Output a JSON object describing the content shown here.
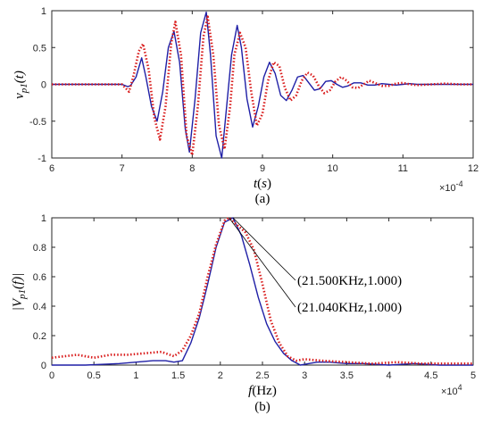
{
  "chart_data": [
    {
      "type": "line",
      "panel_label": "(a)",
      "xlabel_main": "t",
      "xlabel_paren_open": "(",
      "xlabel_unit": "s",
      "xlabel_paren_close": ")",
      "ylabel_base": "v",
      "ylabel_sub": "p1",
      "ylabel_arg": "(t)",
      "x_exponent_base": "×10",
      "x_exponent_power": "-4",
      "xlim": [
        6,
        12
      ],
      "ylim": [
        -1,
        1
      ],
      "xticks": [
        6,
        7,
        8,
        9,
        10,
        11,
        12
      ],
      "xtick_labels": [
        "6",
        "7",
        "8",
        "9",
        "10",
        "11",
        "12"
      ],
      "yticks": [
        -1,
        -0.5,
        0,
        0.5,
        1
      ],
      "ytick_labels": [
        "-1",
        "-0.5",
        "0",
        "0.5",
        "1"
      ],
      "grid": false,
      "series": [
        {
          "color": "#1f1fa6",
          "style": "solid",
          "x": [
            6.0,
            7.0,
            7.08,
            7.12,
            7.2,
            7.28,
            7.34,
            7.42,
            7.5,
            7.58,
            7.66,
            7.74,
            7.82,
            7.9,
            7.96,
            8.04,
            8.12,
            8.2,
            8.26,
            8.34,
            8.42,
            8.48,
            8.56,
            8.64,
            8.7,
            8.78,
            8.86,
            8.94,
            9.02,
            9.1,
            9.18,
            9.26,
            9.34,
            9.42,
            9.5,
            9.58,
            9.66,
            9.74,
            9.82,
            9.9,
            9.98,
            10.06,
            10.14,
            10.22,
            10.3,
            10.4,
            10.5,
            10.6,
            10.7,
            10.8,
            10.9,
            11.0,
            11.1,
            11.2,
            11.4,
            11.6,
            11.8,
            12.0
          ],
          "y": [
            0.0,
            0.0,
            -0.03,
            -0.02,
            0.1,
            0.36,
            0.1,
            -0.3,
            -0.5,
            -0.1,
            0.5,
            0.72,
            0.3,
            -0.6,
            -0.92,
            -0.2,
            0.7,
            0.98,
            0.4,
            -0.7,
            -1.0,
            -0.4,
            0.4,
            0.8,
            0.5,
            -0.2,
            -0.58,
            -0.3,
            0.1,
            0.3,
            0.15,
            -0.15,
            -0.22,
            -0.08,
            0.1,
            0.12,
            0.02,
            -0.08,
            -0.06,
            0.04,
            0.05,
            0.0,
            -0.04,
            -0.02,
            0.02,
            0.02,
            -0.01,
            -0.01,
            0.01,
            0.0,
            -0.01,
            0.0,
            0.01,
            0.0,
            0.0,
            0.0,
            0.0,
            0.0
          ]
        },
        {
          "color": "#d91c1c",
          "style": "dotted",
          "x": [
            6.0,
            7.0,
            7.1,
            7.16,
            7.24,
            7.3,
            7.38,
            7.46,
            7.54,
            7.62,
            7.7,
            7.76,
            7.84,
            7.92,
            8.0,
            8.08,
            8.16,
            8.22,
            8.3,
            8.38,
            8.46,
            8.54,
            8.6,
            8.68,
            8.76,
            8.84,
            8.92,
            9.0,
            9.08,
            9.16,
            9.24,
            9.32,
            9.4,
            9.48,
            9.56,
            9.64,
            9.72,
            9.8,
            9.88,
            9.96,
            10.04,
            10.12,
            10.2,
            10.28,
            10.36,
            10.44,
            10.52,
            10.6,
            10.7,
            10.8,
            10.9,
            11.0,
            11.1,
            11.2,
            11.4,
            11.6,
            11.8,
            12.0
          ],
          "y": [
            0.0,
            0.0,
            -0.1,
            0.1,
            0.45,
            0.55,
            0.2,
            -0.45,
            -0.75,
            -0.3,
            0.55,
            0.85,
            0.4,
            -0.7,
            -0.96,
            -0.3,
            0.65,
            0.92,
            0.4,
            -0.55,
            -0.88,
            -0.3,
            0.4,
            0.7,
            0.5,
            -0.1,
            -0.56,
            -0.4,
            0.05,
            0.3,
            0.25,
            -0.05,
            -0.22,
            -0.15,
            0.05,
            0.16,
            0.12,
            -0.02,
            -0.12,
            -0.08,
            0.04,
            0.1,
            0.05,
            -0.04,
            -0.05,
            0.0,
            0.05,
            0.02,
            -0.02,
            -0.02,
            0.01,
            0.02,
            0.0,
            -0.01,
            0.0,
            0.01,
            0.0,
            0.0
          ]
        }
      ]
    },
    {
      "type": "line",
      "panel_label": "(b)",
      "xlabel_main": "f",
      "xlabel_unit": "(Hz)",
      "ylabel_base": "|V",
      "ylabel_sub": "p1",
      "ylabel_arg": "(f)|",
      "x_exponent_base": "×10",
      "x_exponent_power": "4",
      "xlim": [
        0,
        5
      ],
      "ylim": [
        0,
        1
      ],
      "xticks": [
        0,
        0.5,
        1,
        1.5,
        2,
        2.5,
        3,
        3.5,
        4,
        4.5,
        5
      ],
      "xtick_labels": [
        "0",
        "0.5",
        "1",
        "1.5",
        "2",
        "2.5",
        "3",
        "3.5",
        "4",
        "4.5",
        "5"
      ],
      "yticks": [
        0,
        0.2,
        0.4,
        0.6,
        0.8,
        1
      ],
      "ytick_labels": [
        "0",
        "0.2",
        "0.4",
        "0.6",
        "0.8",
        "1"
      ],
      "grid": false,
      "series": [
        {
          "color": "#1f1fa6",
          "style": "solid",
          "x": [
            0.0,
            0.4,
            0.8,
            1.0,
            1.2,
            1.35,
            1.45,
            1.55,
            1.65,
            1.75,
            1.85,
            1.95,
            2.05,
            2.15,
            2.25,
            2.35,
            2.45,
            2.55,
            2.65,
            2.75,
            2.85,
            2.95,
            3.05,
            3.15,
            3.3,
            3.5,
            3.7,
            4.0,
            4.3,
            4.6,
            5.0
          ],
          "y": [
            0.0,
            0.0,
            0.01,
            0.02,
            0.03,
            0.03,
            0.02,
            0.03,
            0.15,
            0.32,
            0.55,
            0.8,
            0.97,
            1.0,
            0.88,
            0.68,
            0.46,
            0.28,
            0.16,
            0.08,
            0.03,
            0.0,
            0.01,
            0.02,
            0.02,
            0.01,
            0.01,
            0.0,
            0.01,
            0.0,
            0.0
          ]
        },
        {
          "color": "#d91c1c",
          "style": "dotted",
          "x": [
            0.0,
            0.3,
            0.5,
            0.7,
            0.9,
            1.1,
            1.3,
            1.45,
            1.55,
            1.65,
            1.75,
            1.85,
            1.95,
            2.05,
            2.1,
            2.2,
            2.3,
            2.4,
            2.5,
            2.6,
            2.7,
            2.8,
            2.9,
            3.0,
            3.2,
            3.5,
            3.8,
            4.1,
            4.4,
            4.7,
            5.0
          ],
          "y": [
            0.05,
            0.07,
            0.05,
            0.07,
            0.07,
            0.08,
            0.09,
            0.06,
            0.1,
            0.2,
            0.35,
            0.6,
            0.82,
            0.98,
            1.0,
            0.95,
            0.9,
            0.78,
            0.55,
            0.3,
            0.15,
            0.06,
            0.03,
            0.04,
            0.03,
            0.02,
            0.01,
            0.02,
            0.01,
            0.01,
            0.01
          ]
        }
      ],
      "annotations": [
        {
          "text": "(21.500KHz,1.000)",
          "x": 2.15,
          "y": 1.0
        },
        {
          "text": "(21.040KHz,1.000)",
          "x": 2.104,
          "y": 1.0
        }
      ]
    }
  ]
}
